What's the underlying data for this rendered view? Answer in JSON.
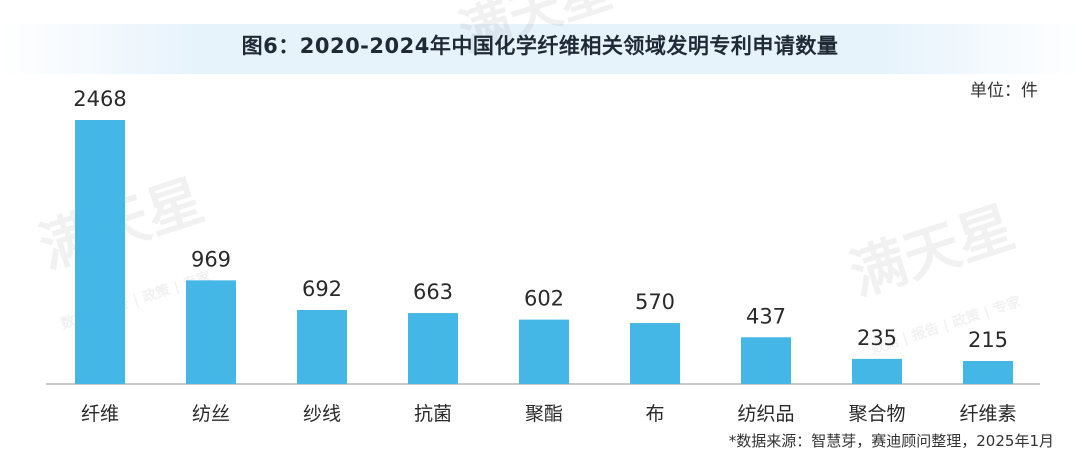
{
  "title": "图6：2020-2024年中国化学纤维相关领域发明专利申请数量",
  "unit_label": "单位：件",
  "source_note": "*数据来源：智慧芽，赛迪顾问整理，2025年1月",
  "watermark": {
    "text": "满天星",
    "subtext": "数据 | 报告 | 政策 | 专家"
  },
  "colors": {
    "bar": "#45b7e6",
    "axis": "#b5b5b5"
  },
  "chart_data": {
    "type": "bar",
    "title": "图6：2020-2024年中国化学纤维相关领域发明专利申请数量",
    "ylabel": "单位：件",
    "categories": [
      "纤维",
      "纺丝",
      "纱线",
      "抗菌",
      "聚酯",
      "布",
      "纺织品",
      "聚合物",
      "纤维素"
    ],
    "values": [
      2468,
      969,
      692,
      663,
      602,
      570,
      437,
      235,
      215
    ],
    "ylim": [
      0,
      2468
    ],
    "grid": false,
    "legend": "none"
  }
}
